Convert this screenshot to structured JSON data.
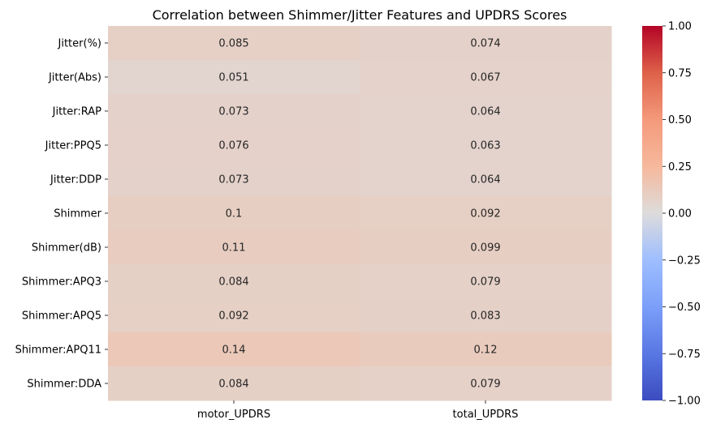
{
  "chart_data": {
    "type": "heatmap",
    "title": "Correlation between Shimmer/Jitter Features and UPDRS Scores",
    "xlabel": "",
    "ylabel": "",
    "columns": [
      "motor_UPDRS",
      "total_UPDRS"
    ],
    "rows": [
      "Jitter(%)",
      "Jitter(Abs)",
      "Jitter:RAP",
      "Jitter:PPQ5",
      "Jitter:DDP",
      "Shimmer",
      "Shimmer(dB)",
      "Shimmer:APQ3",
      "Shimmer:APQ5",
      "Shimmer:APQ11",
      "Shimmer:DDA"
    ],
    "values": [
      [
        0.085,
        0.074
      ],
      [
        0.051,
        0.067
      ],
      [
        0.073,
        0.064
      ],
      [
        0.076,
        0.063
      ],
      [
        0.073,
        0.064
      ],
      [
        0.1,
        0.092
      ],
      [
        0.11,
        0.099
      ],
      [
        0.084,
        0.079
      ],
      [
        0.092,
        0.083
      ],
      [
        0.14,
        0.12
      ],
      [
        0.084,
        0.079
      ]
    ],
    "cell_labels": [
      [
        "0.085",
        "0.074"
      ],
      [
        "0.051",
        "0.067"
      ],
      [
        "0.073",
        "0.064"
      ],
      [
        "0.076",
        "0.063"
      ],
      [
        "0.073",
        "0.064"
      ],
      [
        "0.1",
        "0.092"
      ],
      [
        "0.11",
        "0.099"
      ],
      [
        "0.084",
        "0.079"
      ],
      [
        "0.092",
        "0.083"
      ],
      [
        "0.14",
        "0.12"
      ],
      [
        "0.084",
        "0.079"
      ]
    ],
    "colorbar": {
      "colormap": "coolwarm",
      "range": [
        -1.0,
        1.0
      ],
      "ticks": [
        1.0,
        0.75,
        0.5,
        0.25,
        0.0,
        -0.25,
        -0.5,
        -0.75,
        -1.0
      ],
      "tick_labels": [
        "1.00",
        "0.75",
        "0.50",
        "0.25",
        "0.00",
        "−0.25",
        "−0.50",
        "−0.75",
        "−1.00"
      ]
    }
  }
}
